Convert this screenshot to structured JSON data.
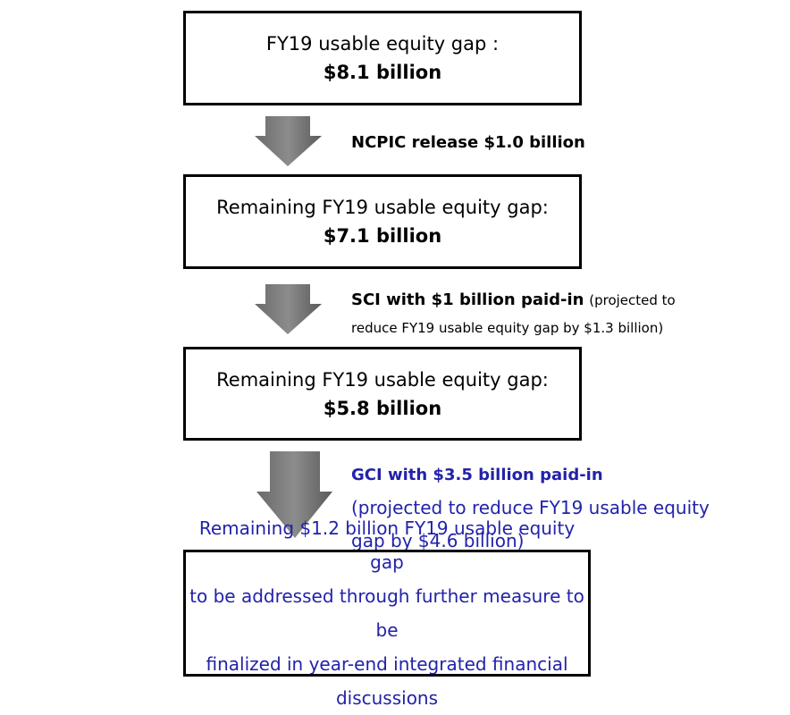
{
  "boxes": [
    {
      "label": "FY19 usable equity gap :",
      "amount": "$8.1 billion"
    },
    {
      "label": "Remaining FY19 usable equity gap:",
      "amount": "$7.1 billion"
    },
    {
      "label": "Remaining FY19 usable equity gap:",
      "amount": "$5.8 billion"
    }
  ],
  "steps": [
    {
      "title": "NCPIC release $1.0 billion"
    },
    {
      "title": "SCI with $1 billion paid-in",
      "note": [
        "(projected to",
        "reduce FY19 usable equity gap by $1.3 billion)"
      ]
    },
    {
      "title": "GCI with $3.5 billion paid-in",
      "note": [
        "(projected to reduce FY19 usable equity",
        "gap by $4.6 billion)"
      ]
    }
  ],
  "final": {
    "lines": [
      "Remaining $1.2 billion FY19 usable equity gap",
      "to be addressed through further measure to be",
      "finalized in year-end integrated financial discussions"
    ]
  }
}
